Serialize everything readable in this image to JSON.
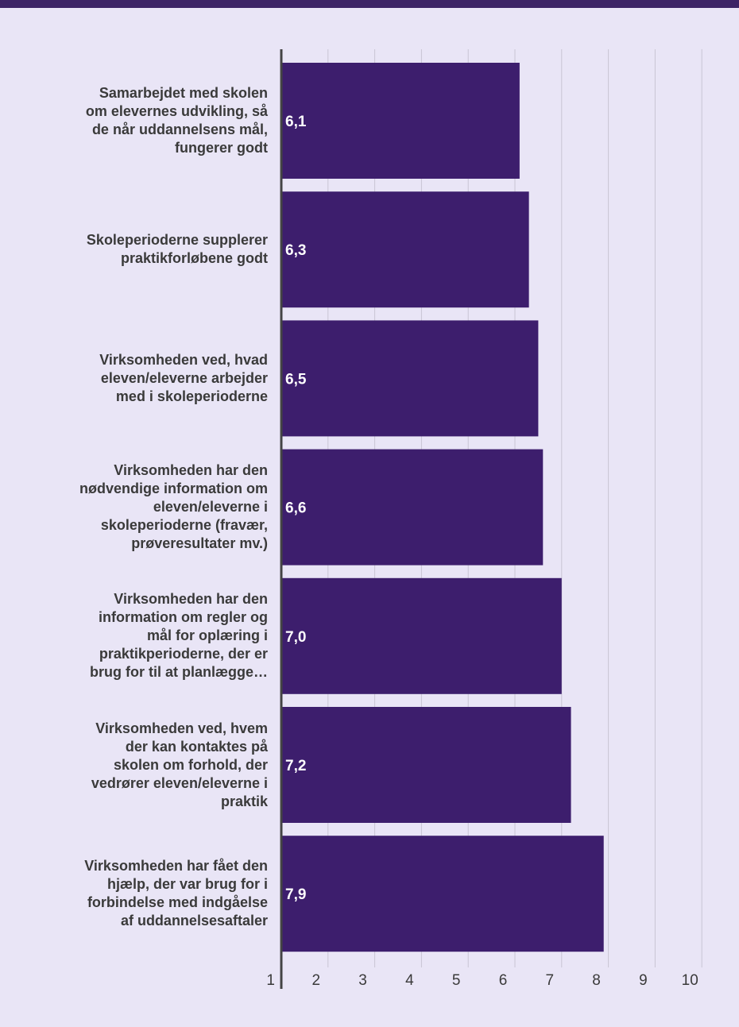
{
  "chart_data": {
    "type": "bar",
    "orientation": "horizontal",
    "categories": [
      "Samarbejdet med skolen om elevernes udvikling, så de når uddannelsens mål, fungerer godt",
      "Skoleperioderne supplerer praktikforløbene godt",
      "Virksomheden ved, hvad eleven/eleverne arbejder med i skoleperioderne",
      "Virksomheden har den nødvendige information om eleven/eleverne i skoleperioderne (fravær, prøveresultater mv.)",
      "Virksomheden har den information om regler og mål for oplæring i praktikperioderne, der er brug for til at planlægge…",
      "Virksomheden ved, hvem der kan kontaktes på skolen om forhold, der vedrører eleven/eleverne i praktik",
      "Virksomheden har fået den hjælp, der var brug for i forbindelse med indgåelse af uddannelsesaftaler"
    ],
    "category_lines": [
      [
        "Samarbejdet med skolen",
        "om elevernes udvikling, så",
        "de når uddannelsens mål,",
        "fungerer godt"
      ],
      [
        "Skoleperioderne supplerer",
        "praktikforløbene godt"
      ],
      [
        "Virksomheden ved, hvad",
        "eleven/eleverne arbejder",
        "med i skoleperioderne"
      ],
      [
        "Virksomheden har den",
        "nødvendige information om",
        "eleven/eleverne i",
        "skoleperioderne (fravær,",
        "prøveresultater mv.)"
      ],
      [
        "Virksomheden har den",
        "information om regler og",
        "mål for oplæring i",
        "praktikperioderne, der er",
        "brug for til at planlægge…"
      ],
      [
        "Virksomheden ved, hvem",
        "der kan kontaktes på",
        "skolen om forhold, der",
        "vedrører eleven/eleverne i",
        "praktik"
      ],
      [
        "Virksomheden har fået den",
        "hjælp, der var brug for i",
        "forbindelse med indgåelse",
        "af uddannelsesaftaler"
      ]
    ],
    "values": [
      6.1,
      6.3,
      6.5,
      6.6,
      7.0,
      7.2,
      7.9
    ],
    "value_labels": [
      "6,1",
      "6,3",
      "6,5",
      "6,6",
      "7,0",
      "7,2",
      "7,9"
    ],
    "xlim": [
      1,
      10
    ],
    "x_ticks": [
      "1",
      "2",
      "3",
      "4",
      "5",
      "6",
      "7",
      "8",
      "9",
      "10"
    ],
    "grid": true,
    "title": "",
    "xlabel": "",
    "ylabel": ""
  },
  "colors": {
    "bar": "#3d1e6d",
    "background": "#e9e5f6",
    "top_band": "#3d2466",
    "grid": "#c9c5d4",
    "axis": "#444444",
    "value_label": "#ffffff",
    "text": "#3a3a3a"
  }
}
